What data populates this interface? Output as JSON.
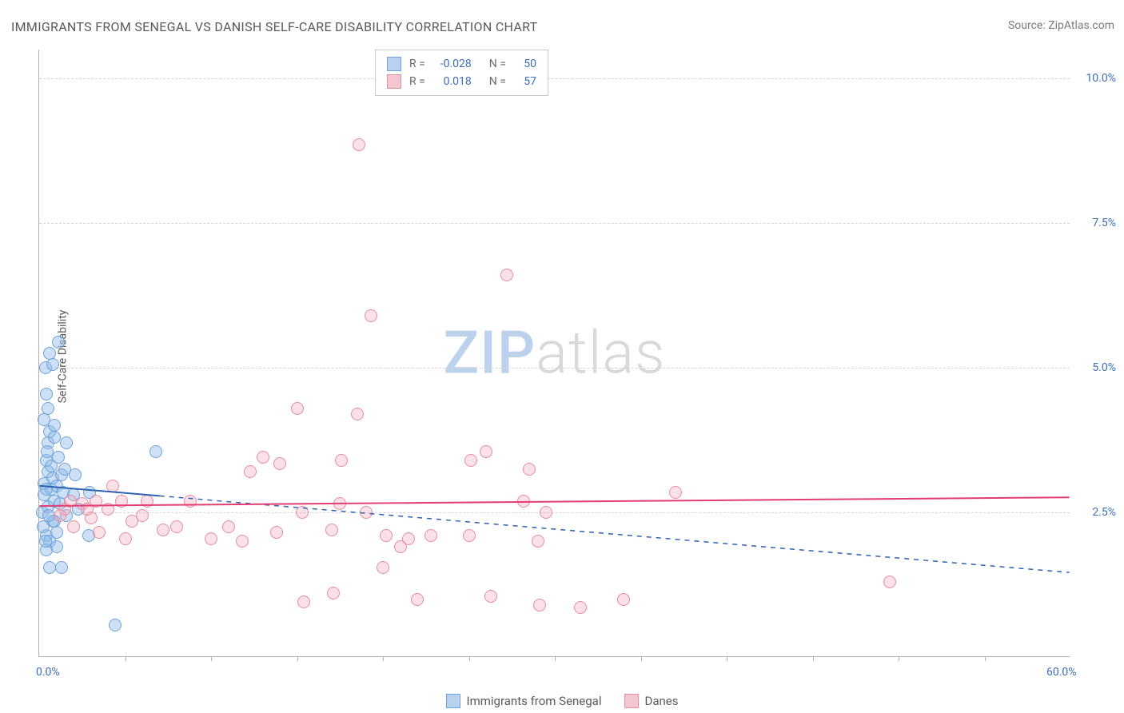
{
  "title": "IMMIGRANTS FROM SENEGAL VS DANISH SELF-CARE DISABILITY CORRELATION CHART",
  "source_label": "Source: ",
  "source_value": "ZipAtlas.com",
  "y_axis_label": "Self-Care Disability",
  "watermark_zip": "ZIP",
  "watermark_atlas": "atlas",
  "chart": {
    "type": "scatter",
    "x_min": 0.0,
    "x_max": 60.0,
    "y_min": 0.0,
    "y_max": 10.5,
    "x_tick_labels": [
      {
        "pos": 0.0,
        "label": "0.0%"
      },
      {
        "pos": 60.0,
        "label": "60.0%"
      }
    ],
    "y_tick_labels": [
      {
        "pos": 2.5,
        "label": "2.5%"
      },
      {
        "pos": 5.0,
        "label": "5.0%"
      },
      {
        "pos": 7.5,
        "label": "7.5%"
      },
      {
        "pos": 10.0,
        "label": "10.0%"
      }
    ],
    "y_gridlines": [
      2.5,
      5.0,
      7.5,
      10.0
    ],
    "x_minor_ticks": [
      5,
      10,
      15,
      20,
      25,
      30,
      35,
      40,
      45,
      50,
      55
    ],
    "background_color": "#ffffff",
    "grid_color": "#d6d6d6",
    "axis_color": "#b0b0b0",
    "marker_radius": 8,
    "marker_border": 1,
    "series": [
      {
        "id": "senegal",
        "label": "Immigrants from Senegal",
        "R": "-0.028",
        "N": "50",
        "color_fill": "rgba(144,186,232,0.45)",
        "color_stroke": "#6ea2d8",
        "swatch_fill": "#b7d1ef",
        "swatch_stroke": "#6ea2d8",
        "regression": {
          "x1": 0.0,
          "y1": 2.95,
          "x2": 60.0,
          "y2": 1.45,
          "solid_until_x": 7.0,
          "color": "#2d63b2",
          "width": 2
        },
        "points": [
          [
            0.2,
            2.5
          ],
          [
            0.3,
            2.8
          ],
          [
            0.3,
            3.0
          ],
          [
            0.5,
            3.2
          ],
          [
            0.4,
            2.1
          ],
          [
            0.6,
            2.0
          ],
          [
            0.5,
            2.6
          ],
          [
            0.7,
            2.9
          ],
          [
            0.8,
            3.1
          ],
          [
            0.9,
            2.7
          ],
          [
            0.4,
            3.4
          ],
          [
            0.5,
            3.7
          ],
          [
            0.6,
            3.9
          ],
          [
            0.3,
            4.1
          ],
          [
            0.4,
            4.55
          ],
          [
            0.7,
            3.3
          ],
          [
            0.35,
            5.0
          ],
          [
            0.8,
            5.05
          ],
          [
            0.6,
            5.25
          ],
          [
            1.1,
            5.45
          ],
          [
            0.9,
            2.35
          ],
          [
            1.0,
            2.95
          ],
          [
            1.1,
            3.45
          ],
          [
            1.2,
            2.65
          ],
          [
            1.3,
            3.15
          ],
          [
            1.4,
            2.85
          ],
          [
            1.5,
            3.25
          ],
          [
            1.0,
            2.15
          ],
          [
            2.0,
            2.8
          ],
          [
            2.1,
            3.15
          ],
          [
            2.3,
            2.55
          ],
          [
            2.95,
            2.85
          ],
          [
            2.9,
            2.1
          ],
          [
            1.6,
            2.45
          ],
          [
            1.0,
            1.9
          ],
          [
            1.3,
            1.55
          ],
          [
            0.9,
            4.0
          ],
          [
            1.6,
            3.7
          ],
          [
            6.8,
            3.55
          ],
          [
            4.4,
            0.55
          ],
          [
            0.4,
            1.85
          ],
          [
            0.6,
            1.55
          ],
          [
            0.8,
            2.35
          ],
          [
            0.4,
            2.9
          ],
          [
            0.55,
            2.45
          ],
          [
            0.25,
            2.25
          ],
          [
            0.45,
            3.55
          ],
          [
            0.35,
            2.0
          ],
          [
            0.9,
            3.8
          ],
          [
            0.5,
            4.3
          ]
        ]
      },
      {
        "id": "danes",
        "label": "Danes",
        "R": "0.018",
        "N": "57",
        "color_fill": "rgba(240,170,185,0.35)",
        "color_stroke": "#e48ca2",
        "swatch_fill": "#f4c6d1",
        "swatch_stroke": "#e48ca2",
        "regression": {
          "x1": 0.0,
          "y1": 2.6,
          "x2": 60.0,
          "y2": 2.75,
          "solid_until_x": 60.0,
          "color": "#e23d73",
          "width": 2
        },
        "points": [
          [
            1.5,
            2.55
          ],
          [
            2.0,
            2.25
          ],
          [
            2.5,
            2.65
          ],
          [
            3.0,
            2.4
          ],
          [
            3.3,
            2.7
          ],
          [
            3.5,
            2.15
          ],
          [
            4.0,
            2.55
          ],
          [
            4.8,
            2.7
          ],
          [
            5.0,
            2.05
          ],
          [
            5.4,
            2.35
          ],
          [
            6.0,
            2.45
          ],
          [
            7.2,
            2.2
          ],
          [
            8.0,
            2.25
          ],
          [
            8.8,
            2.7
          ],
          [
            10.0,
            2.05
          ],
          [
            11.0,
            2.25
          ],
          [
            11.8,
            2.0
          ],
          [
            12.3,
            3.2
          ],
          [
            13.0,
            3.45
          ],
          [
            13.8,
            2.15
          ],
          [
            14.0,
            3.35
          ],
          [
            15.0,
            4.3
          ],
          [
            15.3,
            2.5
          ],
          [
            15.4,
            0.95
          ],
          [
            17.0,
            2.2
          ],
          [
            17.1,
            1.1
          ],
          [
            17.5,
            2.65
          ],
          [
            17.6,
            3.4
          ],
          [
            18.5,
            4.2
          ],
          [
            18.6,
            8.85
          ],
          [
            19.0,
            2.5
          ],
          [
            19.3,
            5.9
          ],
          [
            20.0,
            1.55
          ],
          [
            20.2,
            2.1
          ],
          [
            21.0,
            1.9
          ],
          [
            21.5,
            2.05
          ],
          [
            22.0,
            1.0
          ],
          [
            22.8,
            2.1
          ],
          [
            25.0,
            2.1
          ],
          [
            25.1,
            3.4
          ],
          [
            26.0,
            3.55
          ],
          [
            26.3,
            1.05
          ],
          [
            27.2,
            6.6
          ],
          [
            28.2,
            2.7
          ],
          [
            28.5,
            3.25
          ],
          [
            29.0,
            2.0
          ],
          [
            29.1,
            0.9
          ],
          [
            29.5,
            2.5
          ],
          [
            31.5,
            0.85
          ],
          [
            34.0,
            1.0
          ],
          [
            37.0,
            2.85
          ],
          [
            2.8,
            2.55
          ],
          [
            4.3,
            2.95
          ],
          [
            6.3,
            2.7
          ],
          [
            1.2,
            2.45
          ],
          [
            1.8,
            2.7
          ],
          [
            49.5,
            1.3
          ]
        ]
      }
    ]
  },
  "legend_stats": {
    "R_label": "R =",
    "N_label": "N ="
  },
  "colors": {
    "title": "#5a5a5a",
    "source": "#7a7a7a",
    "tick_label": "#3b6fb6"
  }
}
